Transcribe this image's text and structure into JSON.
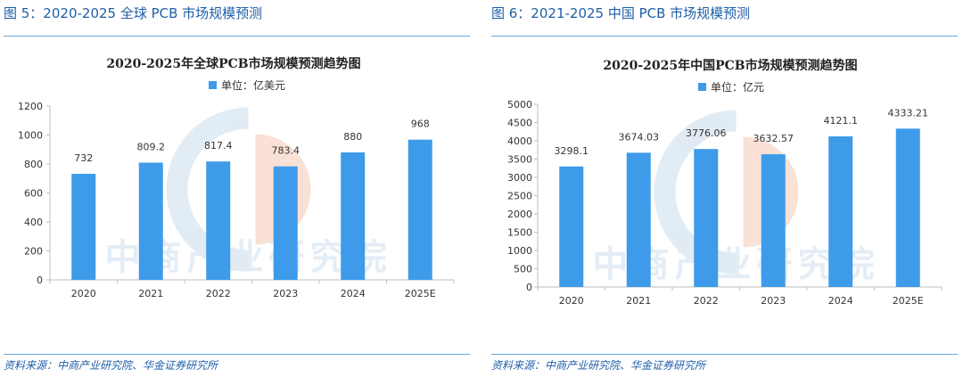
{
  "panels": [
    {
      "caption": "图 5：2020-2025 全球 PCB 市场规模预测",
      "source": "资料来源：中商产业研究院、华金证券研究所"
    },
    {
      "caption": "图 6：2021-2025 中国 PCB 市场规模预测",
      "source": "资料来源：中商产业研究院、华金证券研究所"
    }
  ],
  "watermark": "中商产业研究院",
  "colors": {
    "bar": "#3d9be9",
    "caption": "#1f5fa8",
    "watermark_blue": "#c9dcec",
    "watermark_orange": "#f6c9b4"
  },
  "chart_data": [
    {
      "type": "bar",
      "title": "2020-2025年全球PCB市场规模预测趋势图",
      "legend": "单位：亿美元",
      "legend_position": "top",
      "categories": [
        "2020",
        "2021",
        "2022",
        "2023",
        "2024",
        "2025E"
      ],
      "values": [
        732,
        809.2,
        817.4,
        783.4,
        880,
        968
      ],
      "value_labels": [
        "732",
        "809.2",
        "817.4",
        "783.4",
        "880",
        "968"
      ],
      "ylim": [
        0,
        1200
      ],
      "yticks": [
        0,
        200,
        400,
        600,
        800,
        1000,
        1200
      ],
      "grid": false
    },
    {
      "type": "bar",
      "title": "2020-2025年中国PCB市场规模预测趋势图",
      "legend": "单位：亿元",
      "legend_position": "top",
      "categories": [
        "2020",
        "2021",
        "2022",
        "2023",
        "2024",
        "2025E"
      ],
      "values": [
        3298.1,
        3674.03,
        3776.06,
        3632.57,
        4121.1,
        4333.21
      ],
      "value_labels": [
        "3298.1",
        "3674.03",
        "3776.06",
        "3632.57",
        "4121.1",
        "4333.21"
      ],
      "ylim": [
        0,
        5000
      ],
      "yticks": [
        0,
        500,
        1000,
        1500,
        2000,
        2500,
        3000,
        3500,
        4000,
        4500,
        5000
      ],
      "grid": false
    }
  ]
}
